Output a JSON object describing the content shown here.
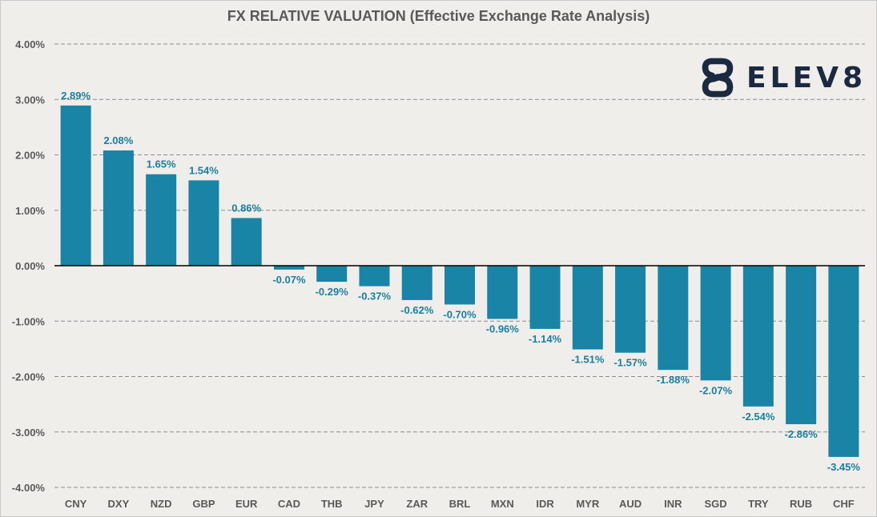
{
  "chart_data": {
    "type": "bar",
    "title": "FX RELATIVE VALUATION (Effective Exchange Rate Analysis)",
    "xlabel": "",
    "ylabel": "",
    "ylim": [
      -4,
      4
    ],
    "yticks": [
      "4.00%",
      "3.00%",
      "2.00%",
      "1.00%",
      "0.00%",
      "-1.00%",
      "-2.00%",
      "-3.00%",
      "-4.00%"
    ],
    "grid": "horizontal-dashed",
    "categories": [
      "CNY",
      "DXY",
      "NZD",
      "GBP",
      "EUR",
      "CAD",
      "THB",
      "JPY",
      "ZAR",
      "BRL",
      "MXN",
      "IDR",
      "MYR",
      "AUD",
      "INR",
      "SGD",
      "TRY",
      "RUB",
      "CHF"
    ],
    "values": [
      2.89,
      2.08,
      1.65,
      1.54,
      0.86,
      -0.07,
      -0.29,
      -0.37,
      -0.62,
      -0.7,
      -0.96,
      -1.14,
      -1.51,
      -1.57,
      -1.88,
      -2.07,
      -2.54,
      -2.86,
      -3.45
    ],
    "labels": [
      "2.89%",
      "2.08%",
      "1.65%",
      "1.54%",
      "0.86%",
      "-0.07%",
      "-0.29%",
      "-0.37%",
      "-0.62%",
      "-0.70%",
      "-0.96%",
      "-1.14%",
      "-1.51%",
      "-1.57%",
      "-1.88%",
      "-2.07%",
      "-2.54%",
      "-2.86%",
      "-3.45%"
    ]
  },
  "colors": {
    "bar": "#1a84a6",
    "label": "#1a7fa0",
    "axis_text": "#595959",
    "grid": "#8c8c8c",
    "logo": "#1b2a41"
  },
  "logo": {
    "text": "ELEV8",
    "icon": "elev8-logo-icon"
  }
}
